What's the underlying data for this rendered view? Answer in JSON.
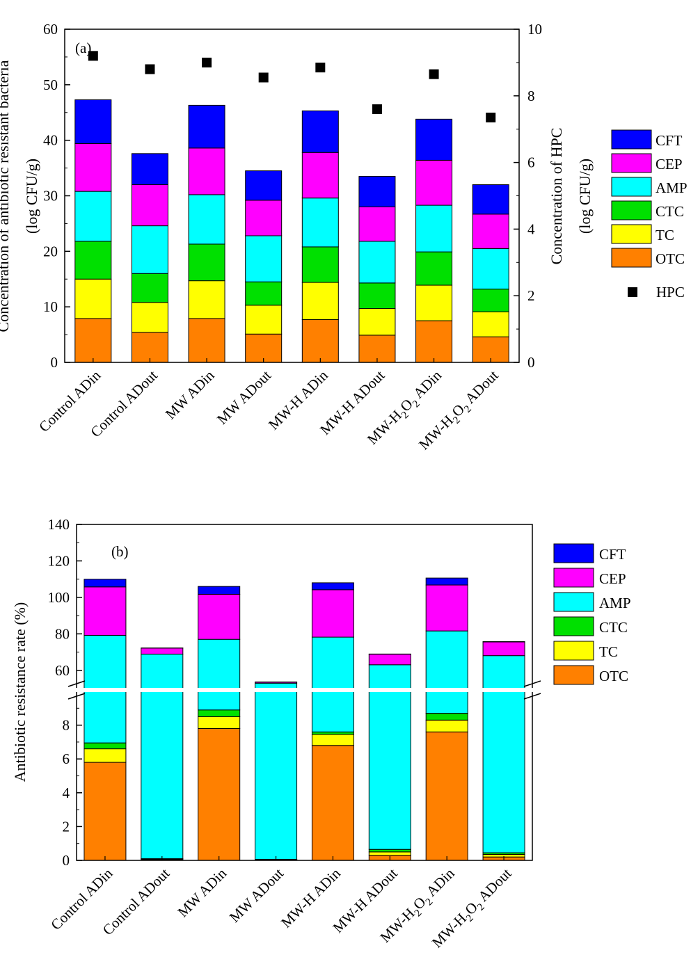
{
  "colors": {
    "CFT": "#0000ff",
    "CEP": "#ff00ff",
    "AMP": "#00ffff",
    "CTC": "#00e000",
    "TC": "#ffff00",
    "OTC": "#ff8000",
    "HPC": "#000000"
  },
  "chart_data": [
    {
      "type": "bar",
      "panel_label": "(a)",
      "stacked": true,
      "ylabel_left": "Concentration of antibiotic resistant bacteria",
      "ylabel_left_units": "(log CFU/g)",
      "ylabel_right": "Concentration of HPC",
      "ylabel_right_units": "(log CFU/g)",
      "ylim_left": [
        0,
        60
      ],
      "yticks_left": [
        "0",
        "10",
        "20",
        "30",
        "40",
        "50",
        "60"
      ],
      "ylim_right": [
        0,
        10
      ],
      "yticks_right": [
        "0",
        "2",
        "4",
        "6",
        "8",
        "10"
      ],
      "categories": [
        {
          "main": "Control ADin"
        },
        {
          "main": "Control ADout"
        },
        {
          "main": "MW ADin"
        },
        {
          "main": "MW ADout"
        },
        {
          "main": "MW-H ADin"
        },
        {
          "main": "MW-H ADout"
        },
        {
          "main": "MW-H",
          "sub1": "2",
          "mid": "O",
          "sub2": "2",
          "tail": " ADin"
        },
        {
          "main": "MW-H",
          "sub1": "2",
          "mid": "O",
          "sub2": "2",
          "tail": " ADout"
        }
      ],
      "legend": [
        "CFT",
        "CEP",
        "AMP",
        "CTC",
        "TC",
        "OTC",
        "HPC"
      ],
      "series": [
        {
          "name": "OTC",
          "values": [
            7.9,
            5.4,
            7.9,
            5.1,
            7.7,
            4.9,
            7.5,
            4.6
          ]
        },
        {
          "name": "TC",
          "values": [
            7.1,
            5.4,
            6.8,
            5.2,
            6.7,
            4.8,
            6.4,
            4.5
          ]
        },
        {
          "name": "CTC",
          "values": [
            6.8,
            5.2,
            6.6,
            4.2,
            6.4,
            4.6,
            6.0,
            4.1
          ]
        },
        {
          "name": "AMP",
          "values": [
            9.0,
            8.6,
            8.9,
            8.3,
            8.8,
            7.5,
            8.4,
            7.3
          ]
        },
        {
          "name": "CEP",
          "values": [
            8.6,
            7.4,
            8.4,
            6.4,
            8.2,
            6.2,
            8.1,
            6.2
          ]
        },
        {
          "name": "CFT",
          "values": [
            7.9,
            5.6,
            7.7,
            5.3,
            7.5,
            5.5,
            7.4,
            5.3
          ]
        }
      ],
      "hpc": [
        9.2,
        8.8,
        9.0,
        8.55,
        8.85,
        7.6,
        8.65,
        7.35
      ]
    },
    {
      "type": "bar",
      "panel_label": "(b)",
      "stacked": true,
      "broken_axis": true,
      "ylabel": "Antibiotic resistance rate (%)",
      "ylim_lower": [
        0,
        10
      ],
      "yticks_lower": [
        "0",
        "2",
        "4",
        "6",
        "8"
      ],
      "ylim_upper": [
        50,
        140
      ],
      "yticks_upper": [
        "60",
        "80",
        "100",
        "120",
        "140"
      ],
      "categories": [
        {
          "main": "Control ADin"
        },
        {
          "main": "Control ADout"
        },
        {
          "main": "MW ADin"
        },
        {
          "main": "MW ADout"
        },
        {
          "main": "MW-H ADin"
        },
        {
          "main": "MW-H ADout"
        },
        {
          "main": "MW-H",
          "sub1": "2",
          "mid": "O",
          "sub2": "2",
          "tail": " ADin"
        },
        {
          "main": "MW-H",
          "sub1": "2",
          "mid": "O",
          "sub2": "2",
          "tail": " ADout"
        }
      ],
      "legend": [
        "CFT",
        "CEP",
        "AMP",
        "CTC",
        "TC",
        "OTC"
      ],
      "series": [
        {
          "name": "OTC",
          "values": [
            5.8,
            0.05,
            7.8,
            0.03,
            6.8,
            0.3,
            7.6,
            0.2
          ]
        },
        {
          "name": "TC",
          "values": [
            0.8,
            0.03,
            0.7,
            0.02,
            0.65,
            0.2,
            0.7,
            0.15
          ]
        },
        {
          "name": "CTC",
          "values": [
            0.35,
            0.02,
            0.4,
            0.01,
            0.15,
            0.15,
            0.4,
            0.1
          ]
        },
        {
          "name": "AMP",
          "values": [
            72.2,
            68.8,
            68.1,
            52.9,
            70.6,
            62.4,
            72.9,
            67.6
          ]
        },
        {
          "name": "CEP",
          "values": [
            26.6,
            3.3,
            24.7,
            0.6,
            26.0,
            5.8,
            25.2,
            7.5
          ]
        },
        {
          "name": "CFT",
          "values": [
            4.2,
            0.1,
            4.3,
            0.1,
            3.8,
            0.1,
            3.8,
            0.2
          ]
        }
      ]
    }
  ]
}
